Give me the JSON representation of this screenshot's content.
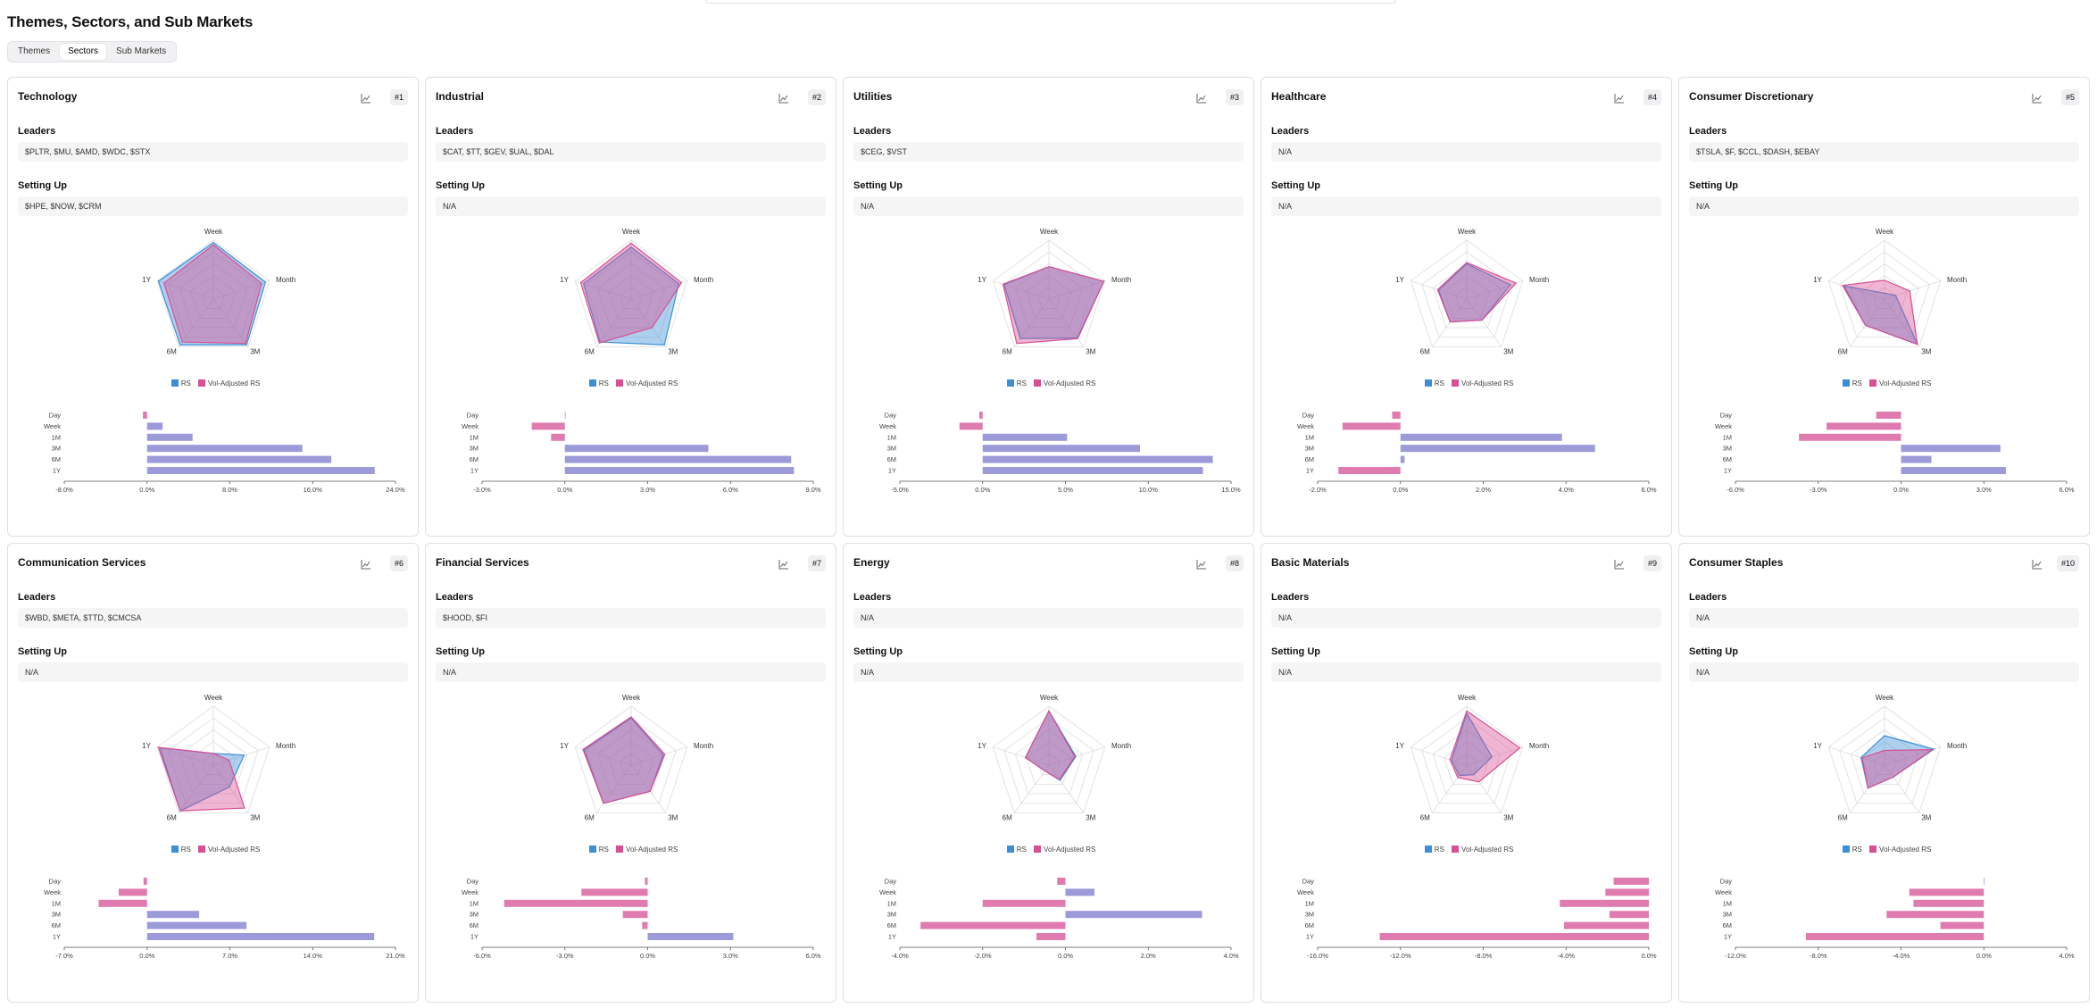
{
  "page": {
    "title": "Themes, Sectors, and Sub Markets",
    "tabs": [
      {
        "label": "Themes",
        "active": false
      },
      {
        "label": "Sectors",
        "active": true
      },
      {
        "label": "Sub Markets",
        "active": false
      }
    ]
  },
  "labels": {
    "leaders": "Leaders",
    "setting_up": "Setting Up",
    "legend_rs": "RS",
    "legend_vol": "Vol-Adjusted RS",
    "radar_axes": [
      "Week",
      "Month",
      "3M",
      "6M",
      "1Y"
    ],
    "bar_categories": [
      "Day",
      "Week",
      "1M",
      "3M",
      "6M",
      "1Y"
    ]
  },
  "colors": {
    "rs": "#3b8fd6",
    "vol": "#d94f94",
    "overlap": "#9f94d6",
    "bar_pos": "#9c9ad9",
    "bar_neg": "#e07bb0"
  },
  "icons": {
    "chart": "chart-line-icon"
  },
  "cards": [
    {
      "name": "Technology",
      "rank": "#1",
      "leaders": "$PLTR, $MU, $AMD, $WDC, $STX",
      "setting_up": "$HPE, $NOW, $CRM",
      "radar_rs": [
        0.96,
        0.93,
        0.96,
        0.96,
        0.98
      ],
      "radar_vol": [
        0.92,
        0.86,
        0.93,
        0.9,
        0.88
      ],
      "bars": [
        -0.4,
        1.5,
        4.4,
        15.0,
        17.8,
        22.0
      ],
      "ticks": [
        "-8.0%",
        "0.0%",
        "8.0%",
        "16.0%",
        "24.0%"
      ],
      "tick_vals": [
        -8,
        0,
        8,
        16,
        24
      ]
    },
    {
      "name": "Industrial",
      "rank": "#2",
      "leaders": "$CAT, $TT, $GEV, $UAL, $DAL",
      "setting_up": "N/A",
      "radar_rs": [
        0.88,
        0.85,
        0.96,
        0.9,
        0.85
      ],
      "radar_vol": [
        0.95,
        0.9,
        0.6,
        0.92,
        0.9
      ],
      "bars": [
        0.0,
        -1.2,
        -0.5,
        5.2,
        8.2,
        8.3
      ],
      "ticks": [
        "-3.0%",
        "0.0%",
        "3.0%",
        "6.0%",
        "9.0%"
      ],
      "tick_vals": [
        -3,
        0,
        3,
        6,
        9
      ]
    },
    {
      "name": "Utilities",
      "rank": "#3",
      "leaders": "$CEG, $VST",
      "setting_up": "N/A",
      "radar_rs": [
        0.55,
        0.98,
        0.82,
        0.83,
        0.8
      ],
      "radar_vol": [
        0.55,
        0.98,
        0.83,
        0.93,
        0.82
      ],
      "bars": [
        -0.2,
        -1.4,
        5.1,
        9.5,
        13.9,
        13.3
      ],
      "ticks": [
        "-5.0%",
        "0.0%",
        "5.0%",
        "10.0%",
        "15.0%"
      ],
      "tick_vals": [
        -5,
        0,
        5,
        10,
        15
      ]
    },
    {
      "name": "Healthcare",
      "rank": "#4",
      "leaders": "N/A",
      "setting_up": "N/A",
      "radar_rs": [
        0.6,
        0.78,
        0.44,
        0.48,
        0.5
      ],
      "radar_vol": [
        0.62,
        0.88,
        0.44,
        0.48,
        0.52
      ],
      "bars": [
        -0.2,
        -1.4,
        3.9,
        4.7,
        0.1,
        -1.5
      ],
      "ticks": [
        "-2.0%",
        "0.0%",
        "2.0%",
        "4.0%",
        "6.0%"
      ],
      "tick_vals": [
        -2,
        0,
        2,
        4,
        6
      ]
    },
    {
      "name": "Consumer Discretionary",
      "rank": "#5",
      "leaders": "$TSLA, $F, $CCL, $DASH, $EBAY",
      "setting_up": "N/A",
      "radar_rs": [
        0.1,
        0.2,
        0.95,
        0.55,
        0.72
      ],
      "radar_vol": [
        0.32,
        0.45,
        0.95,
        0.55,
        0.75
      ],
      "bars": [
        -0.9,
        -2.7,
        -3.7,
        3.6,
        1.1,
        3.8
      ],
      "ticks": [
        "-6.0%",
        "-3.0%",
        "0.0%",
        "3.0%",
        "6.0%"
      ],
      "tick_vals": [
        -6,
        -3,
        0,
        3,
        6
      ]
    },
    {
      "name": "Communication Services",
      "rank": "#6",
      "leaders": "$WBD, $META, $TTD, $CMCSA",
      "setting_up": "N/A",
      "radar_rs": [
        0.2,
        0.55,
        0.46,
        0.96,
        0.95
      ],
      "radar_vol": [
        0.2,
        0.28,
        0.9,
        0.96,
        0.98
      ],
      "bars": [
        -0.3,
        -2.4,
        -4.1,
        4.4,
        8.4,
        19.2
      ],
      "ticks": [
        "-7.0%",
        "0.0%",
        "7.0%",
        "14.0%",
        "21.0%"
      ],
      "tick_vals": [
        -7,
        0,
        7,
        14,
        21
      ]
    },
    {
      "name": "Financial Services",
      "rank": "#7",
      "leaders": "$HOOD, $FI",
      "setting_up": "N/A",
      "radar_rs": [
        0.8,
        0.57,
        0.55,
        0.8,
        0.84
      ],
      "radar_vol": [
        0.82,
        0.6,
        0.55,
        0.8,
        0.86
      ],
      "bars": [
        -0.1,
        -2.4,
        -5.2,
        -0.9,
        -0.2,
        3.1
      ],
      "ticks": [
        "-6.0%",
        "-3.0%",
        "0.0%",
        "3.0%",
        "6.0%"
      ],
      "tick_vals": [
        -6,
        -3,
        0,
        3,
        6
      ]
    },
    {
      "name": "Energy",
      "rank": "#8",
      "leaders": "N/A",
      "setting_up": "N/A",
      "radar_rs": [
        0.92,
        0.48,
        0.32,
        0.12,
        0.42
      ],
      "radar_vol": [
        0.92,
        0.46,
        0.3,
        0.12,
        0.42
      ],
      "bars": [
        -0.2,
        0.7,
        -2.0,
        3.3,
        -3.5,
        -0.7
      ],
      "ticks": [
        "-4.0%",
        "-2.0%",
        "0.0%",
        "2.0%",
        "4.0%"
      ],
      "tick_vals": [
        -4,
        -2,
        0,
        2,
        4
      ]
    },
    {
      "name": "Basic Materials",
      "rank": "#9",
      "leaders": "N/A",
      "setting_up": "N/A",
      "radar_rs": [
        0.88,
        0.45,
        0.2,
        0.22,
        0.27
      ],
      "radar_vol": [
        0.92,
        0.95,
        0.35,
        0.26,
        0.3
      ],
      "bars": [
        -1.7,
        -2.1,
        -4.3,
        -1.9,
        -4.1,
        -13.0
      ],
      "ticks": [
        "-16.0%",
        "-12.0%",
        "-8.0%",
        "-4.0%",
        "0.0%"
      ],
      "tick_vals": [
        -16,
        -12,
        -8,
        -4,
        0
      ]
    },
    {
      "name": "Consumer Staples",
      "rank": "#10",
      "leaders": "N/A",
      "setting_up": "N/A",
      "radar_rs": [
        0.5,
        0.88,
        0.25,
        0.48,
        0.42
      ],
      "radar_vol": [
        0.25,
        0.85,
        0.25,
        0.48,
        0.4
      ],
      "bars": [
        0.0,
        -3.6,
        -3.4,
        -4.7,
        -2.1,
        -8.6
      ],
      "ticks": [
        "-12.0%",
        "-8.0%",
        "-4.0%",
        "0.0%",
        "4.0%"
      ],
      "tick_vals": [
        -12,
        -8,
        -4,
        0,
        4
      ]
    }
  ]
}
